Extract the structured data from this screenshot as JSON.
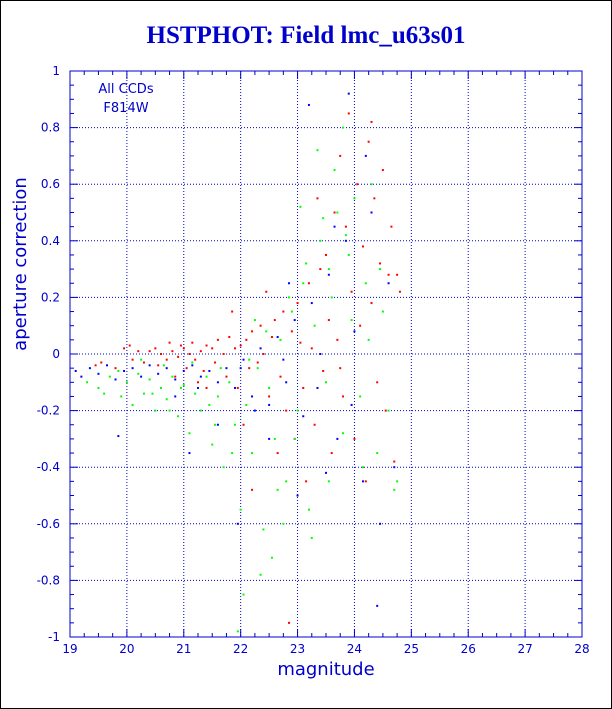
{
  "chart_data": {
    "type": "scatter",
    "title": "HSTPHOT: Field lmc_u63s01",
    "xlabel": "magnitude",
    "ylabel": "aperture correction",
    "xlim": [
      19,
      28
    ],
    "ylim": [
      -1,
      1
    ],
    "xticks": [
      19,
      20,
      21,
      22,
      23,
      24,
      25,
      26,
      27,
      28
    ],
    "yticks": [
      -1,
      -0.8,
      -0.6,
      -0.4,
      -0.2,
      0,
      0.2,
      0.4,
      0.6,
      0.8,
      1
    ],
    "grid": true,
    "annotations": [
      "All CCDs",
      "F814W"
    ],
    "annotation_position": "top-left",
    "colors": {
      "axis": "#0000cc",
      "grid": "#0000cc",
      "title": "#0000cc"
    },
    "series": [
      {
        "color": "#ff0000",
        "points": [
          [
            19.45,
            -0.04
          ],
          [
            19.55,
            -0.03
          ],
          [
            19.8,
            -0.05
          ],
          [
            19.95,
            0.02
          ],
          [
            20.05,
            0.03
          ],
          [
            20.1,
            -0.02
          ],
          [
            20.2,
            0.01
          ],
          [
            20.3,
            -0.03
          ],
          [
            20.4,
            0.01
          ],
          [
            20.5,
            0.02
          ],
          [
            20.55,
            -0.04
          ],
          [
            20.6,
            0.0
          ],
          [
            20.7,
            -0.02
          ],
          [
            20.75,
            0.04
          ],
          [
            20.8,
            0.01
          ],
          [
            20.9,
            -0.01
          ],
          [
            20.95,
            0.03
          ],
          [
            21.0,
            0.02
          ],
          [
            21.05,
            -0.05
          ],
          [
            21.1,
            0.0
          ],
          [
            21.15,
            0.04
          ],
          [
            21.2,
            -0.02
          ],
          [
            21.3,
            0.01
          ],
          [
            21.35,
            -0.06
          ],
          [
            21.4,
            0.03
          ],
          [
            21.5,
            0.02
          ],
          [
            21.55,
            -0.03
          ],
          [
            21.6,
            0.05
          ],
          [
            21.7,
            0.0
          ],
          [
            21.75,
            -0.08
          ],
          [
            21.8,
            0.06
          ],
          [
            21.9,
            0.02
          ],
          [
            21.95,
            -0.12
          ],
          [
            22.0,
            0.03
          ],
          [
            22.1,
            0.05
          ],
          [
            22.15,
            -0.05
          ],
          [
            22.2,
            0.08
          ],
          [
            22.3,
            -0.03
          ],
          [
            22.35,
            0.1
          ],
          [
            22.4,
            0.0
          ],
          [
            22.5,
            -0.15
          ],
          [
            22.55,
            0.06
          ],
          [
            22.6,
            0.12
          ],
          [
            22.7,
            -0.08
          ],
          [
            22.75,
            0.15
          ],
          [
            22.8,
            -0.2
          ],
          [
            22.9,
            0.08
          ],
          [
            22.95,
            -0.3
          ],
          [
            23.0,
            0.18
          ],
          [
            23.05,
            0.04
          ],
          [
            23.1,
            -0.12
          ],
          [
            23.2,
            0.25
          ],
          [
            23.25,
            0.02
          ],
          [
            23.3,
            -0.25
          ],
          [
            23.4,
            0.3
          ],
          [
            23.45,
            -0.06
          ],
          [
            23.5,
            0.35
          ],
          [
            23.55,
            0.12
          ],
          [
            23.6,
            -0.35
          ],
          [
            23.65,
            0.5
          ],
          [
            23.7,
            0.05
          ],
          [
            23.75,
            0.7
          ],
          [
            23.8,
            -0.15
          ],
          [
            23.85,
            0.45
          ],
          [
            23.9,
            0.85
          ],
          [
            23.95,
            0.22
          ],
          [
            24.0,
            -0.3
          ],
          [
            24.05,
            0.6
          ],
          [
            24.1,
            0.1
          ],
          [
            24.15,
            0.38
          ],
          [
            24.2,
            -0.45
          ],
          [
            24.25,
            0.75
          ],
          [
            24.3,
            0.18
          ],
          [
            24.35,
            0.55
          ],
          [
            24.4,
            -0.1
          ],
          [
            24.45,
            0.32
          ],
          [
            24.5,
            0.65
          ],
          [
            24.55,
            -0.2
          ],
          [
            24.6,
            0.28
          ],
          [
            24.65,
            0.45
          ],
          [
            24.7,
            -0.38
          ],
          [
            24.75,
            0.28
          ],
          [
            24.8,
            0.22
          ],
          [
            22.85,
            -0.95
          ],
          [
            22.2,
            -0.48
          ],
          [
            21.4,
            -0.12
          ],
          [
            20.85,
            -0.08
          ],
          [
            23.15,
            -0.45
          ],
          [
            22.65,
            -0.35
          ],
          [
            24.3,
            0.82
          ],
          [
            23.35,
            0.55
          ],
          [
            22.45,
            0.22
          ],
          [
            21.85,
            0.15
          ],
          [
            21.25,
            -0.1
          ],
          [
            22.05,
            -0.25
          ],
          [
            23.75,
            -0.05
          ]
        ]
      },
      {
        "color": "#00ff00",
        "points": [
          [
            19.3,
            -0.1
          ],
          [
            19.5,
            -0.12
          ],
          [
            19.7,
            -0.08
          ],
          [
            19.9,
            -0.15
          ],
          [
            20.0,
            -0.1
          ],
          [
            20.1,
            -0.18
          ],
          [
            20.2,
            -0.07
          ],
          [
            20.3,
            -0.14
          ],
          [
            20.4,
            -0.09
          ],
          [
            20.5,
            -0.2
          ],
          [
            20.6,
            -0.12
          ],
          [
            20.7,
            -0.16
          ],
          [
            20.8,
            -0.08
          ],
          [
            20.9,
            -0.22
          ],
          [
            21.0,
            -0.11
          ],
          [
            21.1,
            -0.28
          ],
          [
            21.2,
            -0.14
          ],
          [
            21.3,
            -0.2
          ],
          [
            21.4,
            -0.08
          ],
          [
            21.5,
            -0.32
          ],
          [
            21.6,
            -0.15
          ],
          [
            21.7,
            -0.4
          ],
          [
            21.8,
            -0.1
          ],
          [
            21.9,
            -0.25
          ],
          [
            22.0,
            -0.55
          ],
          [
            22.1,
            -0.18
          ],
          [
            22.2,
            -0.35
          ],
          [
            22.3,
            -0.05
          ],
          [
            22.4,
            -0.62
          ],
          [
            22.5,
            -0.12
          ],
          [
            22.6,
            -0.3
          ],
          [
            22.7,
            0.05
          ],
          [
            22.8,
            -0.45
          ],
          [
            22.9,
            0.15
          ],
          [
            23.0,
            -0.2
          ],
          [
            23.1,
            0.25
          ],
          [
            23.2,
            -0.55
          ],
          [
            23.3,
            0.1
          ],
          [
            23.4,
            0.4
          ],
          [
            23.5,
            -0.1
          ],
          [
            23.6,
            0.2
          ],
          [
            23.7,
            0.5
          ],
          [
            23.8,
            -0.28
          ],
          [
            23.9,
            0.35
          ],
          [
            24.0,
            0.55
          ],
          [
            24.1,
            -0.15
          ],
          [
            24.2,
            0.25
          ],
          [
            24.3,
            0.6
          ],
          [
            24.4,
            -0.35
          ],
          [
            24.5,
            0.15
          ],
          [
            24.6,
            -0.2
          ],
          [
            24.7,
            -0.48
          ],
          [
            24.75,
            -0.45
          ],
          [
            22.05,
            -0.85
          ],
          [
            22.35,
            -0.78
          ],
          [
            21.95,
            -0.98
          ],
          [
            23.25,
            -0.65
          ],
          [
            22.55,
            -0.72
          ],
          [
            23.85,
            0.42
          ],
          [
            23.45,
            0.48
          ],
          [
            23.05,
            0.52
          ],
          [
            23.55,
            0.3
          ],
          [
            23.95,
            0.12
          ],
          [
            24.25,
            0.05
          ],
          [
            23.15,
            0.32
          ],
          [
            22.85,
            0.2
          ],
          [
            22.45,
            0.08
          ],
          [
            22.15,
            -0.02
          ],
          [
            21.65,
            -0.05
          ],
          [
            21.15,
            -0.03
          ],
          [
            20.65,
            -0.04
          ],
          [
            20.25,
            -0.02
          ],
          [
            19.85,
            -0.06
          ],
          [
            22.65,
            -0.48
          ],
          [
            21.45,
            -0.18
          ],
          [
            20.95,
            -0.12
          ],
          [
            20.45,
            -0.14
          ],
          [
            23.65,
            0.65
          ],
          [
            23.35,
            0.72
          ],
          [
            24.15,
            -0.4
          ],
          [
            22.75,
            -0.6
          ],
          [
            23.8,
            0.8
          ],
          [
            22.95,
            -0.3
          ],
          [
            21.85,
            -0.35
          ],
          [
            20.75,
            -0.2
          ],
          [
            19.6,
            -0.14
          ],
          [
            24.45,
            0.3
          ],
          [
            23.55,
            -0.45
          ],
          [
            22.25,
            0.12
          ],
          [
            21.55,
            -0.25
          ]
        ]
      },
      {
        "color": "#0000ff",
        "points": [
          [
            19.1,
            -0.06
          ],
          [
            19.2,
            -0.08
          ],
          [
            19.35,
            -0.05
          ],
          [
            19.5,
            -0.07
          ],
          [
            19.65,
            -0.04
          ],
          [
            19.8,
            -0.09
          ],
          [
            19.95,
            -0.06
          ],
          [
            20.1,
            -0.05
          ],
          [
            20.25,
            -0.08
          ],
          [
            20.4,
            -0.04
          ],
          [
            20.55,
            -0.07
          ],
          [
            20.7,
            -0.05
          ],
          [
            20.85,
            -0.09
          ],
          [
            21.0,
            -0.06
          ],
          [
            21.15,
            -0.04
          ],
          [
            21.3,
            -0.08
          ],
          [
            21.45,
            -0.06
          ],
          [
            21.6,
            -0.1
          ],
          [
            21.75,
            -0.05
          ],
          [
            21.9,
            -0.12
          ],
          [
            22.05,
            -0.02
          ],
          [
            22.2,
            -0.15
          ],
          [
            22.35,
            0.02
          ],
          [
            22.5,
            -0.18
          ],
          [
            22.65,
            0.06
          ],
          [
            22.8,
            -0.1
          ],
          [
            22.95,
            0.12
          ],
          [
            23.1,
            -0.22
          ],
          [
            23.25,
            0.18
          ],
          [
            23.4,
            0.0
          ],
          [
            23.55,
            0.28
          ],
          [
            23.7,
            -0.3
          ],
          [
            23.85,
            0.4
          ],
          [
            24.0,
            0.08
          ],
          [
            24.15,
            -0.45
          ],
          [
            24.3,
            0.5
          ],
          [
            24.45,
            -0.6
          ],
          [
            24.6,
            0.25
          ],
          [
            23.2,
            0.88
          ],
          [
            23.9,
            0.92
          ],
          [
            24.4,
            -0.89
          ],
          [
            23.0,
            -0.5
          ],
          [
            22.5,
            -0.3
          ],
          [
            21.95,
            -0.6
          ],
          [
            21.6,
            -0.25
          ],
          [
            20.85,
            -0.15
          ],
          [
            19.85,
            -0.29
          ],
          [
            21.1,
            -0.35
          ],
          [
            22.0,
            -0.05
          ],
          [
            23.5,
            -0.42
          ],
          [
            24.2,
            0.7
          ],
          [
            23.65,
            0.45
          ],
          [
            23.35,
            -0.12
          ],
          [
            22.85,
            0.25
          ],
          [
            22.25,
            -0.2
          ],
          [
            24.7,
            -0.4
          ],
          [
            23.95,
            -0.18
          ],
          [
            22.75,
            -0.02
          ],
          [
            21.25,
            -0.12
          ]
        ]
      }
    ]
  }
}
